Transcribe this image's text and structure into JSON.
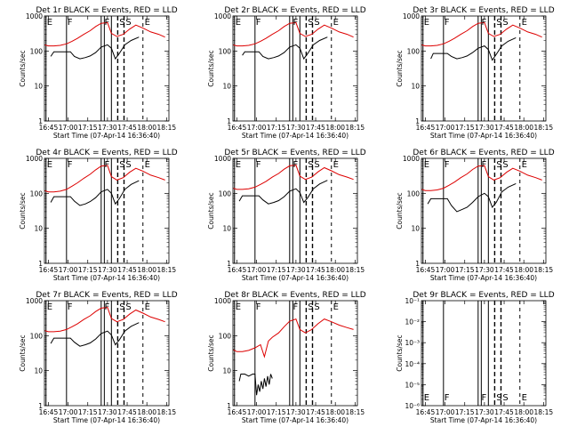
{
  "figure": {
    "x_ticks": [
      "16:45",
      "17:00",
      "17:15",
      "17:30",
      "17:45",
      "18:00",
      "18:15"
    ],
    "y_ticks": [
      "1",
      "10",
      "100",
      "1000"
    ],
    "y_ticks_small": [
      "10⁻¹",
      "10⁻²",
      "10⁻³",
      "10⁻⁴",
      "10⁻⁵",
      "10⁻⁶"
    ],
    "y_label": "Counts/sec",
    "x_label": "Start Time (07-Apr-14 16:36:40)",
    "colors": {
      "events": "#000000",
      "lld": "#dd0000"
    }
  },
  "chart_data": [
    {
      "type": "line",
      "title": "Det 1r BLACK = Events, RED = LLD",
      "xlabel": "Start Time (07-Apr-14 16:36:40)",
      "ylabel": "Counts/sec",
      "ylim": [
        1,
        1000
      ],
      "yscale": "log",
      "markers": [
        "E",
        "F",
        "F",
        "S",
        "S",
        "E"
      ],
      "series": [
        {
          "name": "BLACK = Events",
          "x": [
            16.78,
            16.82,
            16.85,
            16.9,
            16.95,
            17.0,
            17.03,
            17.08,
            17.15,
            17.22,
            17.28,
            17.35,
            17.42,
            17.5,
            17.55,
            17.6,
            17.65,
            17.72,
            17.8,
            17.9
          ],
          "y": [
            70,
            95,
            95,
            95,
            95,
            95,
            95,
            70,
            60,
            65,
            72,
            90,
            130,
            150,
            120,
            60,
            85,
            150,
            200,
            250
          ]
        },
        {
          "name": "RED = LLD",
          "x": [
            16.7,
            16.75,
            16.82,
            16.9,
            16.98,
            17.05,
            17.12,
            17.2,
            17.28,
            17.35,
            17.42,
            17.5,
            17.55,
            17.62,
            17.7,
            17.78,
            17.86,
            17.95,
            18.05,
            18.15,
            18.23
          ],
          "y": [
            150,
            140,
            140,
            145,
            160,
            190,
            230,
            300,
            380,
            500,
            620,
            650,
            320,
            260,
            300,
            420,
            550,
            450,
            350,
            300,
            250
          ]
        }
      ]
    },
    {
      "type": "line",
      "title": "Det 2r BLACK = Events, RED = LLD",
      "xlabel": "Start Time (07-Apr-14 16:36:40)",
      "ylabel": "Counts/sec",
      "ylim": [
        1,
        1000
      ],
      "yscale": "log",
      "markers": [
        "E",
        "F",
        "F",
        "S",
        "S",
        "E"
      ],
      "series": [
        {
          "name": "BLACK = Events",
          "x": [
            16.82,
            16.85,
            16.9,
            16.95,
            17.0,
            17.03,
            17.08,
            17.15,
            17.22,
            17.28,
            17.35,
            17.42,
            17.5,
            17.55,
            17.6,
            17.65,
            17.72,
            17.8,
            17.9
          ],
          "y": [
            75,
            95,
            95,
            95,
            95,
            95,
            70,
            60,
            65,
            72,
            90,
            130,
            150,
            120,
            60,
            85,
            150,
            200,
            250
          ]
        },
        {
          "name": "RED = LLD",
          "x": [
            16.7,
            16.75,
            16.82,
            16.9,
            16.98,
            17.05,
            17.12,
            17.2,
            17.28,
            17.35,
            17.42,
            17.5,
            17.55,
            17.62,
            17.7,
            17.78,
            17.86,
            17.95,
            18.05,
            18.15,
            18.23
          ],
          "y": [
            150,
            140,
            140,
            145,
            160,
            190,
            230,
            300,
            380,
            500,
            620,
            650,
            320,
            260,
            300,
            420,
            550,
            450,
            350,
            300,
            250
          ]
        }
      ]
    },
    {
      "type": "line",
      "title": "Det 3r BLACK = Events, RED = LLD",
      "xlabel": "Start Time (07-Apr-14 16:36:40)",
      "ylabel": "Counts/sec",
      "ylim": [
        1,
        1000
      ],
      "yscale": "log",
      "markers": [
        "E",
        "F",
        "F",
        "S",
        "S",
        "E"
      ],
      "series": [
        {
          "name": "BLACK = Events",
          "x": [
            16.82,
            16.85,
            16.9,
            16.95,
            17.0,
            17.03,
            17.08,
            17.15,
            17.22,
            17.28,
            17.35,
            17.42,
            17.5,
            17.55,
            17.6,
            17.65,
            17.72,
            17.8,
            17.9
          ],
          "y": [
            60,
            85,
            85,
            85,
            85,
            85,
            70,
            60,
            65,
            72,
            90,
            120,
            140,
            110,
            55,
            80,
            140,
            190,
            240
          ]
        },
        {
          "name": "RED = LLD",
          "x": [
            16.7,
            16.75,
            16.82,
            16.9,
            16.98,
            17.05,
            17.12,
            17.2,
            17.28,
            17.35,
            17.42,
            17.5,
            17.55,
            17.62,
            17.7,
            17.78,
            17.86,
            17.95,
            18.05,
            18.15,
            18.23
          ],
          "y": [
            150,
            140,
            140,
            145,
            160,
            190,
            230,
            300,
            380,
            500,
            620,
            650,
            320,
            260,
            300,
            420,
            550,
            450,
            350,
            300,
            250
          ]
        }
      ]
    },
    {
      "type": "line",
      "title": "Det 4r BLACK = Events, RED = LLD",
      "xlabel": "Start Time (07-Apr-14 16:36:40)",
      "ylabel": "Counts/sec",
      "ylim": [
        1,
        1000
      ],
      "yscale": "log",
      "markers": [
        "E",
        "F",
        "F",
        "S",
        "S",
        "E"
      ],
      "series": [
        {
          "name": "BLACK = Events",
          "x": [
            16.78,
            16.82,
            16.85,
            16.9,
            16.95,
            17.0,
            17.03,
            17.08,
            17.15,
            17.22,
            17.28,
            17.35,
            17.42,
            17.5,
            17.55,
            17.6,
            17.65,
            17.72,
            17.8,
            17.9
          ],
          "y": [
            55,
            80,
            80,
            80,
            80,
            80,
            80,
            60,
            45,
            50,
            58,
            75,
            110,
            130,
            100,
            50,
            70,
            130,
            180,
            230
          ]
        },
        {
          "name": "RED = LLD",
          "x": [
            16.7,
            16.75,
            16.82,
            16.9,
            16.98,
            17.05,
            17.12,
            17.2,
            17.28,
            17.35,
            17.42,
            17.5,
            17.55,
            17.62,
            17.7,
            17.78,
            17.86,
            17.95,
            18.05,
            18.15,
            18.23
          ],
          "y": [
            120,
            110,
            110,
            115,
            130,
            160,
            200,
            270,
            350,
            470,
            600,
            630,
            300,
            240,
            280,
            400,
            520,
            430,
            330,
            280,
            240
          ]
        }
      ]
    },
    {
      "type": "line",
      "title": "Det 5r BLACK = Events, RED = LLD",
      "xlabel": "Start Time (07-Apr-14 16:36:40)",
      "ylabel": "Counts/sec",
      "ylim": [
        1,
        1000
      ],
      "yscale": "log",
      "markers": [
        "E",
        "F",
        "F",
        "S",
        "S",
        "E"
      ],
      "series": [
        {
          "name": "BLACK = Events",
          "x": [
            16.78,
            16.82,
            16.85,
            16.9,
            16.95,
            17.0,
            17.03,
            17.08,
            17.15,
            17.22,
            17.28,
            17.35,
            17.42,
            17.5,
            17.55,
            17.6,
            17.65,
            17.72,
            17.8,
            17.9
          ],
          "y": [
            60,
            85,
            85,
            85,
            85,
            85,
            85,
            65,
            50,
            55,
            62,
            80,
            115,
            135,
            105,
            55,
            75,
            135,
            185,
            235
          ]
        },
        {
          "name": "RED = LLD",
          "x": [
            16.7,
            16.75,
            16.82,
            16.9,
            16.98,
            17.05,
            17.12,
            17.2,
            17.28,
            17.35,
            17.42,
            17.5,
            17.55,
            17.62,
            17.7,
            17.78,
            17.86,
            17.95,
            18.05,
            18.15,
            18.23
          ],
          "y": [
            140,
            130,
            130,
            135,
            150,
            180,
            220,
            290,
            370,
            490,
            610,
            640,
            310,
            250,
            290,
            410,
            540,
            440,
            340,
            290,
            250
          ]
        }
      ]
    },
    {
      "type": "line",
      "title": "Det 6r BLACK = Events, RED = LLD",
      "xlabel": "Start Time (07-Apr-14 16:36:40)",
      "ylabel": "Counts/sec",
      "ylim": [
        1,
        1000
      ],
      "yscale": "log",
      "markers": [
        "E",
        "F",
        "F",
        "S",
        "S",
        "E"
      ],
      "series": [
        {
          "name": "BLACK = Events",
          "x": [
            16.78,
            16.82,
            16.85,
            16.9,
            16.95,
            17.0,
            17.03,
            17.08,
            17.15,
            17.22,
            17.28,
            17.35,
            17.42,
            17.5,
            17.55,
            17.6,
            17.65,
            17.72,
            17.8,
            17.9
          ],
          "y": [
            50,
            70,
            70,
            70,
            70,
            70,
            70,
            45,
            30,
            35,
            40,
            55,
            80,
            100,
            80,
            40,
            55,
            110,
            150,
            190
          ]
        },
        {
          "name": "RED = LLD",
          "x": [
            16.7,
            16.75,
            16.82,
            16.9,
            16.98,
            17.05,
            17.12,
            17.2,
            17.28,
            17.35,
            17.42,
            17.5,
            17.55,
            17.62,
            17.7,
            17.78,
            17.86,
            17.95,
            18.05,
            18.15,
            18.23
          ],
          "y": [
            130,
            120,
            120,
            125,
            140,
            170,
            210,
            280,
            360,
            480,
            600,
            620,
            300,
            240,
            280,
            400,
            520,
            430,
            330,
            280,
            240
          ]
        }
      ]
    },
    {
      "type": "line",
      "title": "Det 7r BLACK = Events, RED = LLD",
      "xlabel": "Start Time (07-Apr-14 16:36:40)",
      "ylabel": "Counts/sec",
      "ylim": [
        1,
        1000
      ],
      "yscale": "log",
      "markers": [
        "E",
        "F",
        "F",
        "S",
        "S",
        "E"
      ],
      "series": [
        {
          "name": "BLACK = Events",
          "x": [
            16.78,
            16.82,
            16.85,
            16.9,
            16.95,
            17.0,
            17.03,
            17.08,
            17.15,
            17.22,
            17.28,
            17.35,
            17.42,
            17.5,
            17.55,
            17.6,
            17.65,
            17.72,
            17.8,
            17.9
          ],
          "y": [
            60,
            85,
            85,
            85,
            85,
            85,
            85,
            65,
            50,
            55,
            62,
            80,
            115,
            135,
            105,
            55,
            75,
            135,
            185,
            235
          ]
        },
        {
          "name": "RED = LLD",
          "x": [
            16.7,
            16.75,
            16.82,
            16.9,
            16.98,
            17.05,
            17.12,
            17.2,
            17.28,
            17.35,
            17.42,
            17.5,
            17.55,
            17.62,
            17.7,
            17.78,
            17.86,
            17.95,
            18.05,
            18.15,
            18.23
          ],
          "y": [
            140,
            130,
            130,
            135,
            150,
            180,
            220,
            290,
            370,
            490,
            610,
            640,
            310,
            250,
            290,
            410,
            540,
            440,
            340,
            290,
            250
          ]
        }
      ]
    },
    {
      "type": "line",
      "title": "Det 8r BLACK = Events, RED = LLD",
      "xlabel": "Start Time (07-Apr-14 16:36:40)",
      "ylabel": "Counts/sec",
      "ylim": [
        1,
        1000
      ],
      "yscale": "log",
      "markers": [
        "E",
        "F",
        "F",
        "S",
        "S",
        "E"
      ],
      "series": [
        {
          "name": "BLACK = Events",
          "x": [
            16.78,
            16.8,
            16.85,
            16.9,
            16.95,
            16.98,
            17.0,
            17.02,
            17.04,
            17.06,
            17.08,
            17.1,
            17.12,
            17.14,
            17.16,
            17.18,
            17.2
          ],
          "y": [
            5,
            8,
            8,
            7,
            8,
            8,
            2,
            4,
            2.5,
            5,
            3,
            6,
            3.5,
            7,
            4,
            8,
            6
          ]
        },
        {
          "name": "RED = LLD",
          "x": [
            16.7,
            16.75,
            16.82,
            16.9,
            16.98,
            17.05,
            17.1,
            17.15,
            17.2,
            17.28,
            17.35,
            17.42,
            17.5,
            17.55,
            17.62,
            17.7,
            17.78,
            17.86,
            17.95,
            18.05,
            18.15,
            18.23
          ],
          "y": [
            40,
            35,
            35,
            38,
            45,
            55,
            25,
            70,
            90,
            120,
            180,
            260,
            300,
            150,
            120,
            150,
            220,
            300,
            250,
            200,
            170,
            150
          ]
        }
      ]
    },
    {
      "type": "line",
      "title": "Det 9r BLACK = Events, RED = LLD",
      "xlabel": "Start Time (07-Apr-14 16:36:40)",
      "ylabel": "Counts/sec",
      "ylim": [
        1e-06,
        0.1
      ],
      "yscale": "log",
      "markers": [
        "E",
        "F",
        "F",
        "S",
        "S",
        "E"
      ],
      "series": []
    }
  ]
}
